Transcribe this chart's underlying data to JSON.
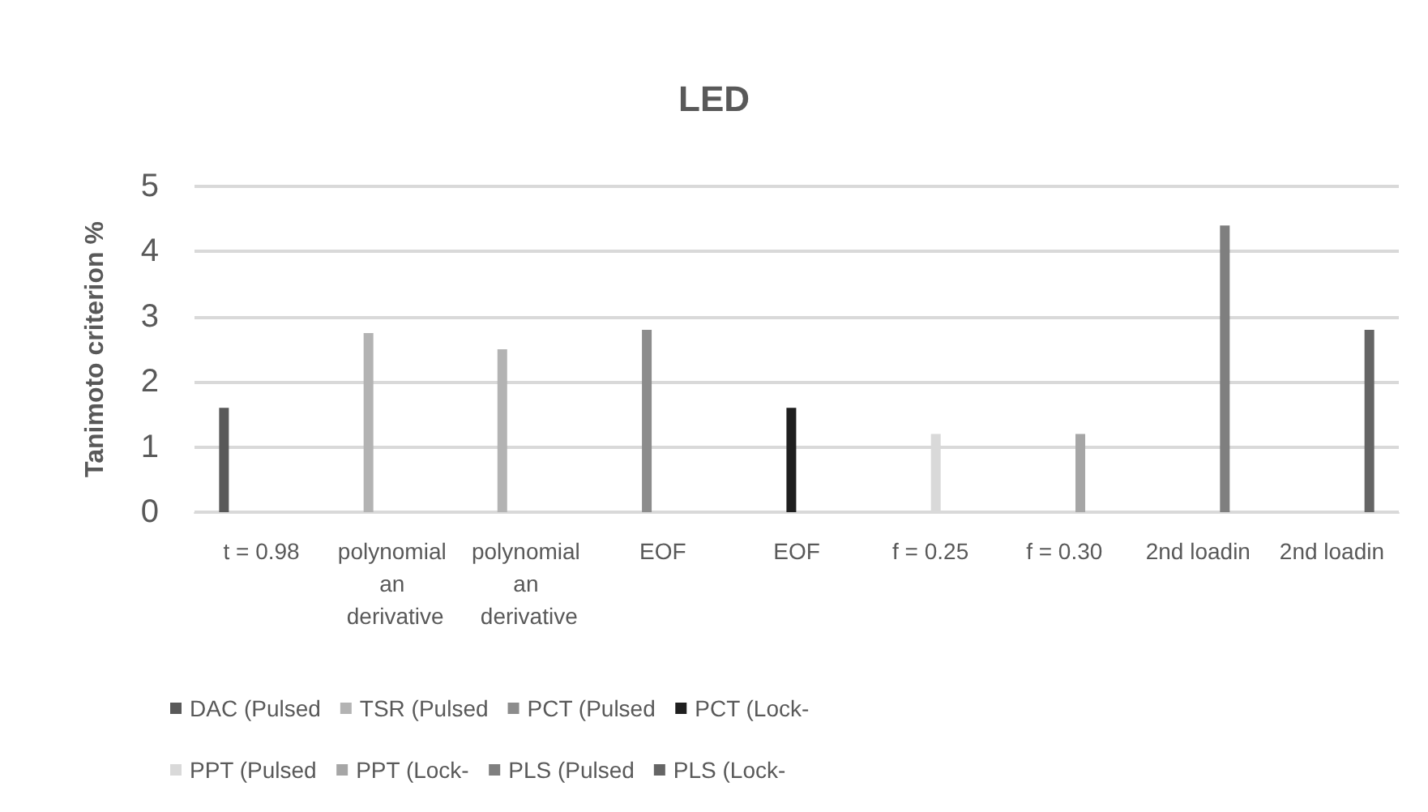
{
  "chart_data": {
    "type": "bar",
    "title": "LED",
    "ylabel": "Tanimoto criterion %",
    "categories": [
      "t = 0.98",
      "polynomial an derivative",
      "polynomial an derivative",
      "EOF",
      "EOF",
      "f = 0.25",
      "f = 0.30",
      "2nd loadin",
      "2nd loadin"
    ],
    "series": [
      {
        "name": "DAC (Pulsed",
        "color": "#595959",
        "values": [
          1.6,
          null,
          null,
          null,
          null,
          null,
          null,
          null,
          null
        ]
      },
      {
        "name": "TSR (Pulsed",
        "color": "#b3b3b3",
        "values": [
          null,
          2.75,
          2.5,
          null,
          null,
          null,
          null,
          null,
          null
        ]
      },
      {
        "name": "PCT (Pulsed",
        "color": "#8c8c8c",
        "values": [
          null,
          null,
          null,
          2.8,
          null,
          null,
          null,
          null,
          null
        ]
      },
      {
        "name": "PCT (Lock-",
        "color": "#1f1f1f",
        "values": [
          null,
          null,
          null,
          null,
          1.6,
          null,
          null,
          null,
          null
        ]
      },
      {
        "name": "PPT (Pulsed",
        "color": "#d9d9d9",
        "values": [
          null,
          null,
          null,
          null,
          null,
          1.2,
          null,
          null,
          null
        ]
      },
      {
        "name": "PPT (Lock-",
        "color": "#a6a6a6",
        "values": [
          null,
          null,
          null,
          null,
          null,
          null,
          1.2,
          null,
          null
        ]
      },
      {
        "name": "PLS (Pulsed",
        "color": "#7f7f7f",
        "values": [
          null,
          null,
          null,
          null,
          null,
          null,
          null,
          4.4,
          null
        ]
      },
      {
        "name": "PLS (Lock-",
        "color": "#656565",
        "values": [
          null,
          null,
          null,
          null,
          null,
          null,
          null,
          null,
          2.8
        ]
      }
    ],
    "ylim": [
      0,
      5
    ],
    "yticks": [
      0,
      1,
      2,
      3,
      4,
      5
    ],
    "grid": "y",
    "legend": "bottom"
  }
}
